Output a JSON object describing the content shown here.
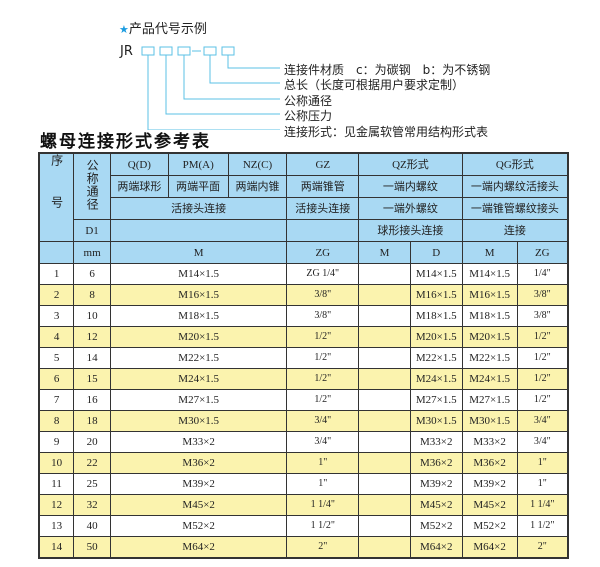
{
  "example": {
    "star": "★",
    "heading": "产品代号示例",
    "code": "JR",
    "colors": {
      "box": "#5bc0e6",
      "line": "#5bc0e6",
      "star": "#1a9be0"
    },
    "labels": [
      "连接件材质　c：为碳钢　b：为不锈钢",
      "总长（长度可根据用户要求定制）",
      "公称通径",
      "公称压力",
      "连接形式：见金属软管常用结构形式表"
    ]
  },
  "title": "螺母连接形式参考表",
  "header": {
    "seq": "序号",
    "nominal": "公称通径",
    "d1": "D1",
    "mm": "mm",
    "types": [
      "Q(D)",
      "PM(A)",
      "NZ(C)",
      "GZ",
      "QZ形式",
      "QG形式"
    ],
    "row2": [
      "两端球形",
      "两端平面",
      "两端内锥",
      "两端锥管",
      "一端内螺纹",
      "一端内螺纹活接头"
    ],
    "row3": [
      "活接头连接",
      "活接头连接",
      "一端外螺纹",
      "一端锥管螺纹接头"
    ],
    "row4": [
      "球形接头连接",
      "连接"
    ],
    "row5": [
      "M",
      "ZG",
      "M",
      "D",
      "M",
      "ZG"
    ]
  },
  "colors": {
    "header": "#a9d9f3",
    "odd_row": "#ffffff",
    "even_row": "#fbf3ae"
  },
  "rows": [
    {
      "no": "1",
      "dn": "6",
      "m": "M14×1.5",
      "zg": "ZG 1/4\"",
      "qz_m": "",
      "qz_d": "M14×1.5",
      "qg_m": "M14×1.5",
      "qg_zg": "1/4\""
    },
    {
      "no": "2",
      "dn": "8",
      "m": "M16×1.5",
      "zg": "3/8\"",
      "qz_m": "",
      "qz_d": "M16×1.5",
      "qg_m": "M16×1.5",
      "qg_zg": "3/8\""
    },
    {
      "no": "3",
      "dn": "10",
      "m": "M18×1.5",
      "zg": "3/8\"",
      "qz_m": "",
      "qz_d": "M18×1.5",
      "qg_m": "M18×1.5",
      "qg_zg": "3/8\""
    },
    {
      "no": "4",
      "dn": "12",
      "m": "M20×1.5",
      "zg": "1/2\"",
      "qz_m": "",
      "qz_d": "M20×1.5",
      "qg_m": "M20×1.5",
      "qg_zg": "1/2\""
    },
    {
      "no": "5",
      "dn": "14",
      "m": "M22×1.5",
      "zg": "1/2\"",
      "qz_m": "",
      "qz_d": "M22×1.5",
      "qg_m": "M22×1.5",
      "qg_zg": "1/2\""
    },
    {
      "no": "6",
      "dn": "15",
      "m": "M24×1.5",
      "zg": "1/2\"",
      "qz_m": "",
      "qz_d": "M24×1.5",
      "qg_m": "M24×1.5",
      "qg_zg": "1/2\""
    },
    {
      "no": "7",
      "dn": "16",
      "m": "M27×1.5",
      "zg": "1/2\"",
      "qz_m": "",
      "qz_d": "M27×1.5",
      "qg_m": "M27×1.5",
      "qg_zg": "1/2\""
    },
    {
      "no": "8",
      "dn": "18",
      "m": "M30×1.5",
      "zg": "3/4\"",
      "qz_m": "",
      "qz_d": "M30×1.5",
      "qg_m": "M30×1.5",
      "qg_zg": "3/4\""
    },
    {
      "no": "9",
      "dn": "20",
      "m": "M33×2",
      "zg": "3/4\"",
      "qz_m": "",
      "qz_d": "M33×2",
      "qg_m": "M33×2",
      "qg_zg": "3/4\""
    },
    {
      "no": "10",
      "dn": "22",
      "m": "M36×2",
      "zg": "1\"",
      "qz_m": "",
      "qz_d": "M36×2",
      "qg_m": "M36×2",
      "qg_zg": "1\""
    },
    {
      "no": "11",
      "dn": "25",
      "m": "M39×2",
      "zg": "1\"",
      "qz_m": "",
      "qz_d": "M39×2",
      "qg_m": "M39×2",
      "qg_zg": "1\""
    },
    {
      "no": "12",
      "dn": "32",
      "m": "M45×2",
      "zg": "1 1/4\"",
      "qz_m": "",
      "qz_d": "M45×2",
      "qg_m": "M45×2",
      "qg_zg": "1 1/4\""
    },
    {
      "no": "13",
      "dn": "40",
      "m": "M52×2",
      "zg": "1 1/2\"",
      "qz_m": "",
      "qz_d": "M52×2",
      "qg_m": "M52×2",
      "qg_zg": "1 1/2\""
    },
    {
      "no": "14",
      "dn": "50",
      "m": "M64×2",
      "zg": "2\"",
      "qz_m": "",
      "qz_d": "M64×2",
      "qg_m": "M64×2",
      "qg_zg": "2\""
    }
  ]
}
